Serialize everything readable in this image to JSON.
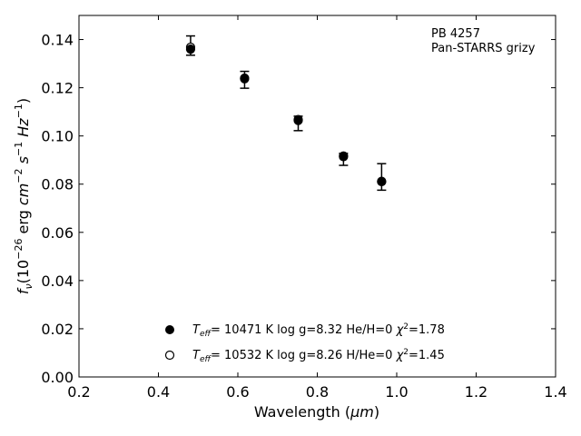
{
  "chart_data": {
    "type": "scatter",
    "xlabel_prefix": "Wavelength (",
    "xlabel_unit": "μm",
    "xlabel_suffix": ")",
    "ylabel": {
      "symbol": "f",
      "symbol_sub": "ν",
      "open": "(10",
      "exp1": "−26",
      "unit1": " erg ",
      "cm": "cm",
      "exp2": "−2",
      "s": "s",
      "exp3": "−1",
      "hz": "Hz",
      "exp4": "−1",
      "close": ")"
    },
    "xlim": [
      0.2,
      1.4
    ],
    "ylim": [
      0.0,
      0.15
    ],
    "xticks": [
      "0.2",
      "0.4",
      "0.6",
      "0.8",
      "1.0",
      "1.2",
      "1.4"
    ],
    "xtick_values": [
      0.2,
      0.4,
      0.6,
      0.8,
      1.0,
      1.2,
      1.4
    ],
    "yticks": [
      "0.00",
      "0.02",
      "0.04",
      "0.06",
      "0.08",
      "0.10",
      "0.12",
      "0.14"
    ],
    "ytick_values": [
      0.0,
      0.02,
      0.04,
      0.06,
      0.08,
      0.1,
      0.12,
      0.14
    ],
    "annotation": [
      "PB 4257",
      "Pan-STARRS grizy"
    ],
    "observed": {
      "x": [
        0.481,
        0.617,
        0.752,
        0.866,
        0.962
      ],
      "y": [
        0.1375,
        0.1233,
        0.1052,
        0.0903,
        0.083
      ],
      "yerr": [
        0.004,
        0.0035,
        0.003,
        0.0025,
        0.0055
      ]
    },
    "series": [
      {
        "marker": "filled",
        "teff": "T",
        "teff_sub": "eff",
        "text": "= 10471 K  log g=8.32  He/H=0  ",
        "chi": "χ",
        "chi_exp": "2",
        "chi_val": "=1.78",
        "x": [
          0.481,
          0.617,
          0.752,
          0.866,
          0.962
        ],
        "y": [
          0.136,
          0.1237,
          0.1064,
          0.0914,
          0.081
        ]
      },
      {
        "marker": "open",
        "teff": "T",
        "teff_sub": "eff",
        "text": "= 10532 K  log g=8.26  H/He=0  ",
        "chi": "χ",
        "chi_exp": "2",
        "chi_val": "=1.45",
        "x": [
          0.481,
          0.617,
          0.752,
          0.866,
          0.962
        ],
        "y": [
          0.1368,
          0.124,
          0.1068,
          0.0917,
          0.0812
        ]
      }
    ]
  }
}
